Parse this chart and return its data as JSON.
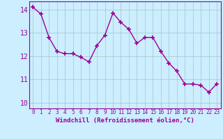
{
  "x": [
    0,
    1,
    2,
    3,
    4,
    5,
    6,
    7,
    8,
    9,
    10,
    11,
    12,
    13,
    14,
    15,
    16,
    17,
    18,
    19,
    20,
    21,
    22,
    23
  ],
  "y": [
    14.1,
    13.8,
    12.8,
    12.2,
    12.1,
    12.1,
    11.95,
    11.75,
    12.45,
    12.9,
    13.85,
    13.45,
    13.15,
    12.55,
    12.8,
    12.8,
    12.2,
    11.7,
    11.35,
    10.8,
    10.8,
    10.75,
    10.45,
    10.8
  ],
  "line_color": "#990099",
  "marker": "+",
  "marker_size": 4,
  "marker_lw": 1.2,
  "bg_color": "#cceeff",
  "grid_color": "#aacccc",
  "xlabel": "Windchill (Refroidissement éolien,°C)",
  "xlabel_color": "#990099",
  "tick_color": "#990099",
  "ylim": [
    9.75,
    14.35
  ],
  "xlim": [
    -0.5,
    23.5
  ],
  "yticks": [
    10,
    11,
    12,
    13,
    14
  ],
  "xticks": [
    0,
    1,
    2,
    3,
    4,
    5,
    6,
    7,
    8,
    9,
    10,
    11,
    12,
    13,
    14,
    15,
    16,
    17,
    18,
    19,
    20,
    21,
    22,
    23
  ],
  "line_width": 1.0,
  "spine_color": "#990099"
}
